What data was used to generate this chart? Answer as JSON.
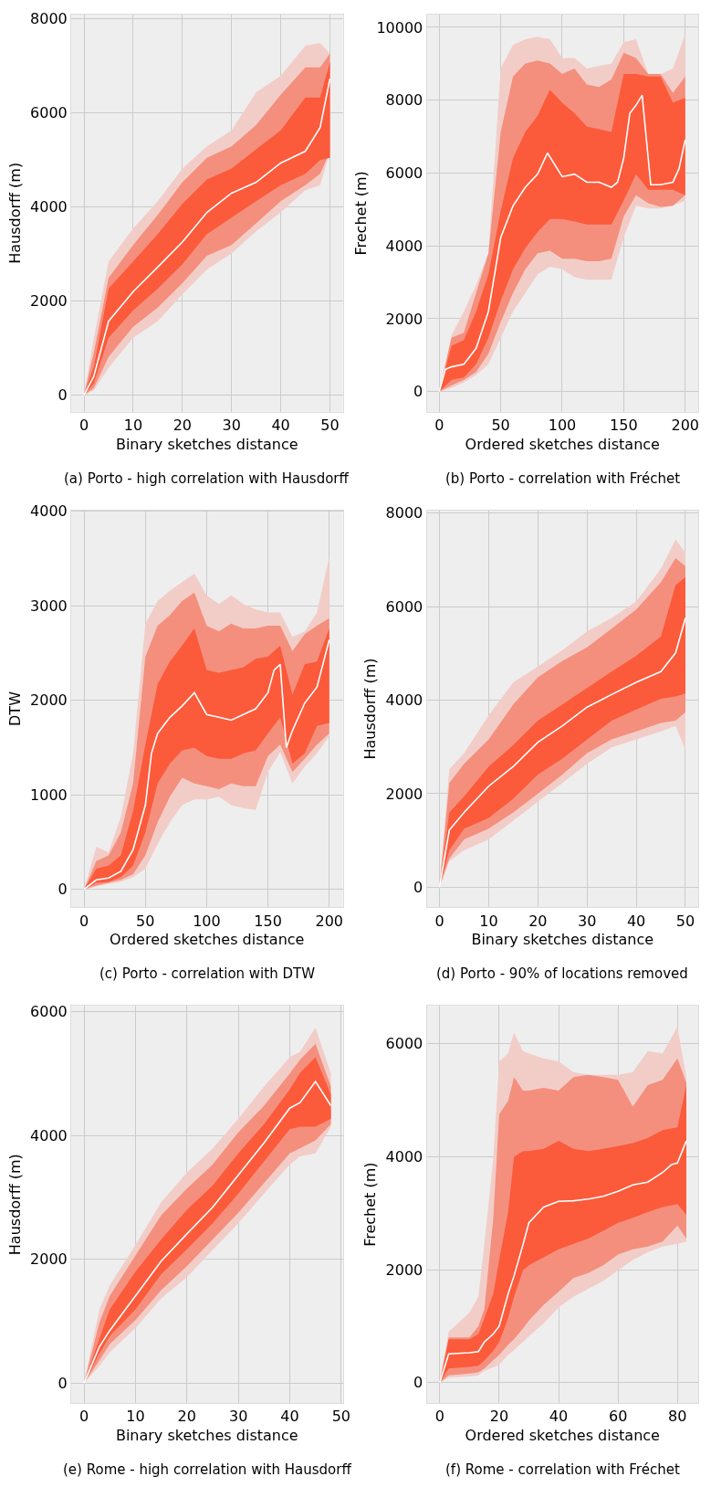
{
  "chart_data": [
    {
      "type": "line",
      "title": "(a) Porto - high correlation with Hausdorff",
      "xlabel": "Binary sketches distance",
      "ylabel": "Hausdorff (m)",
      "xlim": [
        -2.6,
        52.6
      ],
      "xticks": [
        0,
        10,
        20,
        30,
        40,
        50
      ],
      "ylim": [
        -350,
        8080
      ],
      "yticks": [
        0,
        2000,
        4000,
        6000,
        8000
      ],
      "grid": true,
      "x": [
        0,
        2,
        5,
        10,
        15,
        20,
        25,
        30,
        35,
        40,
        45,
        48,
        50
      ],
      "series": [
        {
          "color": "#f2cdc8",
          "values": [
            null,
            null,
            null,
            null,
            null,
            null,
            null,
            null,
            null,
            null,
            null,
            null,
            null
          ],
          "lower": [
            0,
            100,
            580,
            1220,
            1570,
            2140,
            2670,
            3010,
            3480,
            3880,
            4350,
            4460,
            5160
          ],
          "upper": [
            0,
            1200,
            2840,
            3540,
            4120,
            4810,
            5280,
            5620,
            6430,
            6780,
            7420,
            7480,
            7250
          ]
        },
        {
          "color": "#f48f7d",
          "values": [
            null,
            null,
            null,
            null,
            null,
            null,
            null,
            null,
            null,
            null,
            null,
            null,
            null
          ],
          "lower": [
            0,
            150,
            810,
            1450,
            1860,
            2380,
            2960,
            3190,
            3650,
            4120,
            4460,
            4700,
            5160
          ],
          "upper": [
            0,
            900,
            2490,
            3190,
            3830,
            4520,
            5040,
            5280,
            5740,
            6380,
            6960,
            6960,
            7250
          ]
        },
        {
          "color": "#fb5a3b",
          "values": [
            null,
            null,
            null,
            null,
            null,
            null,
            null,
            null,
            null,
            null,
            null,
            null,
            null
          ],
          "lower": [
            0,
            250,
            1220,
            1800,
            2260,
            2780,
            3420,
            3770,
            4120,
            4460,
            4700,
            4990,
            5040
          ],
          "upper": [
            0,
            600,
            2260,
            2840,
            3420,
            4060,
            4580,
            4810,
            5220,
            5620,
            6320,
            6320,
            7070
          ]
        },
        {
          "color": "#ffffff",
          "values": [
            0,
            400,
            1570,
            2200,
            2720,
            3250,
            3880,
            4290,
            4520,
            4930,
            5180,
            5680,
            6720
          ]
        }
      ]
    },
    {
      "type": "line",
      "title": "(b) Porto - correlation with Fréchet",
      "xlabel": "Ordered sketches distance",
      "ylabel": "Frechet (m)",
      "xlim": [
        -10.2,
        210.6
      ],
      "xticks": [
        0,
        50,
        100,
        150,
        200
      ],
      "ylim": [
        -550,
        10350
      ],
      "yticks": [
        0,
        2000,
        4000,
        6000,
        8000,
        10000
      ],
      "grid": true,
      "x": [
        0,
        10,
        20,
        30,
        40,
        50,
        60,
        70,
        80,
        90,
        100,
        110,
        120,
        130,
        140,
        150,
        160,
        170,
        180,
        190,
        200
      ],
      "series": [
        {
          "color": "#f2cdc8",
          "values": [
            null,
            null,
            null,
            null,
            null,
            null,
            null,
            null,
            null,
            null,
            null,
            null,
            null,
            null,
            null,
            null,
            null,
            null,
            null,
            null,
            null
          ],
          "lower": [
            0,
            100,
            250,
            460,
            750,
            1480,
            2200,
            2710,
            3220,
            3430,
            3360,
            3140,
            3070,
            3070,
            3070,
            4230,
            5100,
            5030,
            5030,
            5100,
            5250
          ],
          "upper": [
            0,
            1550,
            2200,
            2930,
            3800,
            8870,
            9520,
            9670,
            9740,
            9670,
            9160,
            9160,
            8870,
            8940,
            9010,
            9590,
            9670,
            8720,
            8720,
            8870,
            9810
          ]
        },
        {
          "color": "#f48f7d",
          "values": [
            null,
            null,
            null,
            null,
            null,
            null,
            null,
            null,
            null,
            null,
            null,
            null,
            null,
            null,
            null,
            null,
            null,
            null,
            null,
            null,
            null
          ],
          "lower": [
            0,
            170,
            320,
            540,
            1040,
            1910,
            2710,
            3360,
            3800,
            3870,
            3650,
            3650,
            3580,
            3580,
            3650,
            4810,
            5390,
            5170,
            5070,
            5100,
            5390
          ],
          "upper": [
            0,
            1480,
            1620,
            2710,
            3800,
            7130,
            8650,
            9010,
            9090,
            9010,
            8720,
            8870,
            8430,
            8360,
            8570,
            9300,
            9160,
            8720,
            8720,
            8200,
            8650
          ]
        },
        {
          "color": "#fb5a3b",
          "values": [
            null,
            null,
            null,
            null,
            null,
            null,
            null,
            null,
            null,
            null,
            null,
            null,
            null,
            null,
            null,
            null,
            null,
            null,
            null,
            null,
            null
          ],
          "lower": [
            0,
            320,
            390,
            750,
            1480,
            2490,
            3360,
            3940,
            4380,
            4740,
            4740,
            4670,
            4590,
            4590,
            4590,
            5250,
            5970,
            5540,
            5540,
            5540,
            5390
          ],
          "upper": [
            0,
            1260,
            1410,
            2200,
            3220,
            4960,
            6410,
            7130,
            7570,
            8290,
            7930,
            7640,
            7280,
            7200,
            7130,
            8720,
            8720,
            8650,
            8650,
            7930,
            8070
          ]
        },
        {
          "color": "#ffffff",
          "x": [
            0,
            5,
            10,
            20,
            30,
            40,
            50,
            60,
            70,
            80,
            88,
            100,
            110,
            120,
            130,
            140,
            145,
            150,
            155,
            160,
            165,
            172,
            180,
            190,
            195,
            200
          ],
          "values": [
            0,
            610,
            680,
            750,
            1190,
            2200,
            4230,
            5100,
            5610,
            5970,
            6550,
            5900,
            5970,
            5750,
            5750,
            5610,
            5750,
            6410,
            7640,
            7860,
            8140,
            5680,
            5680,
            5750,
            6120,
            6910
          ]
        }
      ]
    },
    {
      "type": "line",
      "title": "(c) Porto - correlation with DTW",
      "xlabel": "Ordered sketches distance",
      "ylabel": "DTW",
      "xlim": [
        -10.5,
        211
      ],
      "xticks": [
        0,
        50,
        100,
        150,
        200
      ],
      "ylim": [
        -190,
        4010
      ],
      "yticks": [
        0,
        1000,
        2000,
        3000,
        4000
      ],
      "grid": true,
      "x": [
        0,
        10,
        20,
        30,
        40,
        50,
        60,
        70,
        80,
        90,
        100,
        110,
        120,
        130,
        140,
        150,
        160,
        170,
        180,
        190,
        200
      ],
      "series": [
        {
          "color": "#f2cdc8",
          "values": [
            null,
            null,
            null,
            null,
            null,
            null,
            null,
            null,
            null,
            null,
            null,
            null,
            null,
            null,
            null,
            null,
            null,
            null,
            null,
            null,
            null
          ],
          "lower": [
            0,
            30,
            60,
            80,
            130,
            220,
            480,
            710,
            890,
            950,
            950,
            980,
            890,
            860,
            840,
            1240,
            1450,
            1120,
            1300,
            1440,
            1620
          ],
          "upper": [
            0,
            450,
            390,
            770,
            1440,
            2810,
            3050,
            3160,
            3250,
            3340,
            3110,
            3020,
            3110,
            3020,
            2960,
            2930,
            2930,
            2670,
            2730,
            2930,
            3520
          ]
        },
        {
          "color": "#f48f7d",
          "values": [
            null,
            null,
            null,
            null,
            null,
            null,
            null,
            null,
            null,
            null,
            null,
            null,
            null,
            null,
            null,
            null,
            null,
            null,
            null,
            null,
            null
          ],
          "lower": [
            0,
            40,
            70,
            100,
            160,
            360,
            710,
            980,
            1180,
            1120,
            1090,
            1060,
            1120,
            1090,
            1090,
            1410,
            1530,
            1240,
            1380,
            1530,
            1650
          ],
          "upper": [
            0,
            300,
            360,
            600,
            1120,
            2460,
            2790,
            2900,
            3050,
            3140,
            2790,
            2730,
            2810,
            2760,
            2760,
            2790,
            2790,
            2520,
            2700,
            2790,
            2870
          ]
        },
        {
          "color": "#fb5a3b",
          "values": [
            null,
            null,
            null,
            null,
            null,
            null,
            null,
            null,
            null,
            null,
            null,
            null,
            null,
            null,
            null,
            null,
            null,
            null,
            null,
            null,
            null
          ],
          "lower": [
            0,
            70,
            80,
            130,
            250,
            600,
            1120,
            1330,
            1470,
            1500,
            1410,
            1380,
            1380,
            1440,
            1470,
            1650,
            1820,
            1330,
            1440,
            1730,
            1760
          ],
          "upper": [
            0,
            220,
            250,
            360,
            830,
            1530,
            2170,
            2410,
            2580,
            2760,
            2320,
            2290,
            2320,
            2350,
            2440,
            2460,
            2580,
            2060,
            2380,
            2410,
            2760
          ]
        },
        {
          "color": "#ffffff",
          "x": [
            0,
            10,
            20,
            30,
            40,
            50,
            55,
            60,
            70,
            80,
            90,
            100,
            110,
            120,
            130,
            140,
            150,
            155,
            160,
            165,
            170,
            180,
            190,
            200
          ],
          "values": [
            0,
            100,
            120,
            190,
            420,
            890,
            1440,
            1650,
            1820,
            1940,
            2080,
            1850,
            1820,
            1790,
            1850,
            1910,
            2080,
            2320,
            2380,
            1500,
            1680,
            1970,
            2140,
            2640
          ]
        }
      ]
    },
    {
      "type": "line",
      "title": "(d) Porto - 90% of locations removed",
      "xlabel": "Binary sketches distance",
      "ylabel": "Hausdorff (m)",
      "xlim": [
        -2.6,
        52.6
      ],
      "xticks": [
        0,
        10,
        20,
        30,
        40,
        50
      ],
      "ylim": [
        -430,
        8060
      ],
      "yticks": [
        0,
        2000,
        4000,
        6000,
        8000
      ],
      "grid": true,
      "x": [
        0,
        2,
        5,
        10,
        15,
        20,
        25,
        30,
        35,
        40,
        45,
        48,
        50
      ],
      "series": [
        {
          "color": "#f2cdc8",
          "values": [
            null,
            null,
            null,
            null,
            null,
            null,
            null,
            null,
            null,
            null,
            null,
            null,
            null
          ],
          "lower": [
            0,
            560,
            790,
            1020,
            1420,
            1830,
            2230,
            2640,
            2990,
            3160,
            3330,
            3450,
            2930
          ],
          "upper": [
            0,
            2520,
            2870,
            3680,
            4380,
            4720,
            5070,
            5470,
            5760,
            6110,
            6810,
            7440,
            7150
          ]
        },
        {
          "color": "#f48f7d",
          "values": [
            null,
            null,
            null,
            null,
            null,
            null,
            null,
            null,
            null,
            null,
            null,
            null,
            null
          ],
          "lower": [
            0,
            610,
            1020,
            1250,
            1600,
            2000,
            2410,
            2870,
            3160,
            3330,
            3510,
            3560,
            3740
          ],
          "upper": [
            0,
            2230,
            2640,
            3160,
            3910,
            4490,
            4840,
            5130,
            5530,
            5940,
            6520,
            7040,
            6860
          ]
        },
        {
          "color": "#fb5a3b",
          "values": [
            null,
            null,
            null,
            null,
            null,
            null,
            null,
            null,
            null,
            null,
            null,
            null,
            null
          ],
          "lower": [
            0,
            790,
            1250,
            1480,
            1890,
            2410,
            2750,
            3160,
            3560,
            3800,
            4030,
            4080,
            4140
          ],
          "upper": [
            0,
            1600,
            1940,
            2580,
            3040,
            3560,
            3910,
            4260,
            4610,
            4950,
            5360,
            6460,
            6630
          ]
        },
        {
          "color": "#ffffff",
          "values": [
            0,
            1220,
            1600,
            2160,
            2580,
            3100,
            3450,
            3850,
            4120,
            4380,
            4610,
            5010,
            5760
          ]
        }
      ]
    },
    {
      "type": "line",
      "title": "(e) Rome - high correlation with Hausdorff",
      "xlabel": "Binary sketches distance",
      "ylabel": "Hausdorff (m)",
      "xlim": [
        -2.5,
        50.3
      ],
      "xticks": [
        0,
        10,
        20,
        30,
        40,
        50
      ],
      "ylim": [
        -320,
        6090
      ],
      "yticks": [
        0,
        2000,
        4000,
        6000
      ],
      "grid": true,
      "x": [
        0,
        3,
        5,
        10,
        15,
        20,
        25,
        30,
        35,
        40,
        42,
        45,
        48
      ],
      "series": [
        {
          "color": "#f2cdc8",
          "values": [
            null,
            null,
            null,
            null,
            null,
            null,
            null,
            null,
            null,
            null,
            null,
            null,
            null
          ],
          "lower": [
            0,
            280,
            500,
            890,
            1370,
            1710,
            2150,
            2580,
            3060,
            3530,
            3660,
            3710,
            4140
          ],
          "upper": [
            0,
            1190,
            1580,
            2230,
            2920,
            3400,
            3790,
            4270,
            4790,
            5260,
            5350,
            5740,
            5000
          ]
        },
        {
          "color": "#f48f7d",
          "values": [
            null,
            null,
            null,
            null,
            null,
            null,
            null,
            null,
            null,
            null,
            null,
            null,
            null
          ],
          "lower": [
            0,
            370,
            630,
            1020,
            1500,
            1890,
            2320,
            2750,
            3230,
            3710,
            3790,
            3920,
            4180
          ],
          "upper": [
            0,
            980,
            1410,
            2060,
            2710,
            3140,
            3530,
            4050,
            4480,
            5000,
            5220,
            5480,
            4790
          ]
        },
        {
          "color": "#fb5a3b",
          "values": [
            null,
            null,
            null,
            null,
            null,
            null,
            null,
            null,
            null,
            null,
            null,
            null,
            null
          ],
          "lower": [
            0,
            480,
            760,
            1190,
            1760,
            2160,
            2580,
            3060,
            3580,
            4100,
            4140,
            4140,
            4270
          ],
          "upper": [
            0,
            720,
            1190,
            1800,
            2320,
            2800,
            3190,
            3710,
            4180,
            4740,
            5010,
            5260,
            4660
          ]
        },
        {
          "color": "#ffffff",
          "values": [
            0,
            590,
            850,
            1410,
            1970,
            2410,
            2840,
            3360,
            3880,
            4440,
            4530,
            4870,
            4480
          ]
        }
      ]
    },
    {
      "type": "line",
      "title": "(f) Rome - correlation with Fréchet",
      "xlabel": "Ordered sketches distance",
      "ylabel": "Frechet (m)",
      "xlim": [
        -4.4,
        87
      ],
      "xticks": [
        0,
        20,
        40,
        60,
        80
      ],
      "ylim": [
        -360,
        6670
      ],
      "yticks": [
        0,
        2000,
        4000,
        6000
      ],
      "grid": true,
      "x": [
        0,
        3,
        10,
        13,
        15,
        18,
        20,
        23,
        25,
        28,
        30,
        35,
        40,
        45,
        50,
        55,
        60,
        65,
        70,
        75,
        80,
        83
      ],
      "series": [
        {
          "color": "#f2cdc8",
          "values": [
            null,
            null,
            null,
            null,
            null,
            null,
            null,
            null,
            null,
            null,
            null,
            null,
            null,
            null,
            null,
            null,
            null,
            null,
            null,
            null,
            null,
            null
          ],
          "lower": [
            0,
            90,
            110,
            130,
            210,
            270,
            320,
            490,
            580,
            720,
            820,
            1050,
            1330,
            1520,
            1660,
            1800,
            1990,
            2170,
            2310,
            2410,
            2460,
            2500
          ],
          "upper": [
            0,
            900,
            1240,
            1520,
            2460,
            3960,
            5690,
            5830,
            6200,
            5870,
            5830,
            5740,
            5690,
            5500,
            5450,
            5450,
            5450,
            5500,
            5870,
            5830,
            6300,
            5410
          ]
        },
        {
          "color": "#f48f7d",
          "values": [
            null,
            null,
            null,
            null,
            null,
            null,
            null,
            null,
            null,
            null,
            null,
            null,
            null,
            null,
            null,
            null,
            null,
            null,
            null,
            null,
            null,
            null
          ],
          "lower": [
            0,
            130,
            160,
            180,
            250,
            400,
            490,
            670,
            770,
            960,
            1100,
            1380,
            1610,
            1850,
            1940,
            2080,
            2270,
            2360,
            2410,
            2500,
            2780,
            2550
          ],
          "upper": [
            0,
            800,
            800,
            1000,
            1300,
            2900,
            4750,
            4990,
            5410,
            5170,
            5170,
            5220,
            5170,
            5410,
            5450,
            5410,
            5360,
            4890,
            5270,
            5360,
            5740,
            5310
          ]
        },
        {
          "color": "#fb5a3b",
          "values": [
            null,
            null,
            null,
            null,
            null,
            null,
            null,
            null,
            null,
            null,
            null,
            null,
            null,
            null,
            null,
            null,
            null,
            null,
            null,
            null,
            null,
            null
          ],
          "lower": [
            0,
            250,
            280,
            300,
            390,
            560,
            720,
            1140,
            1520,
            1990,
            2080,
            2220,
            2360,
            2460,
            2550,
            2690,
            2830,
            2920,
            3020,
            3110,
            3160,
            2970
          ],
          "upper": [
            0,
            770,
            770,
            860,
            1140,
            1570,
            2170,
            3020,
            4000,
            4100,
            4100,
            4140,
            4280,
            4140,
            4100,
            4140,
            4190,
            4240,
            4330,
            4470,
            4520,
            5270
          ]
        },
        {
          "color": "#ffffff",
          "x": [
            0,
            3,
            10,
            13,
            15,
            18,
            20,
            23,
            25,
            28,
            30,
            35,
            40,
            45,
            50,
            55,
            60,
            65,
            70,
            75,
            78,
            80,
            83
          ],
          "values": [
            0,
            510,
            530,
            550,
            720,
            860,
            1000,
            1570,
            1890,
            2440,
            2830,
            3110,
            3210,
            3220,
            3250,
            3300,
            3390,
            3500,
            3550,
            3720,
            3860,
            3890,
            4280
          ]
        }
      ]
    }
  ]
}
